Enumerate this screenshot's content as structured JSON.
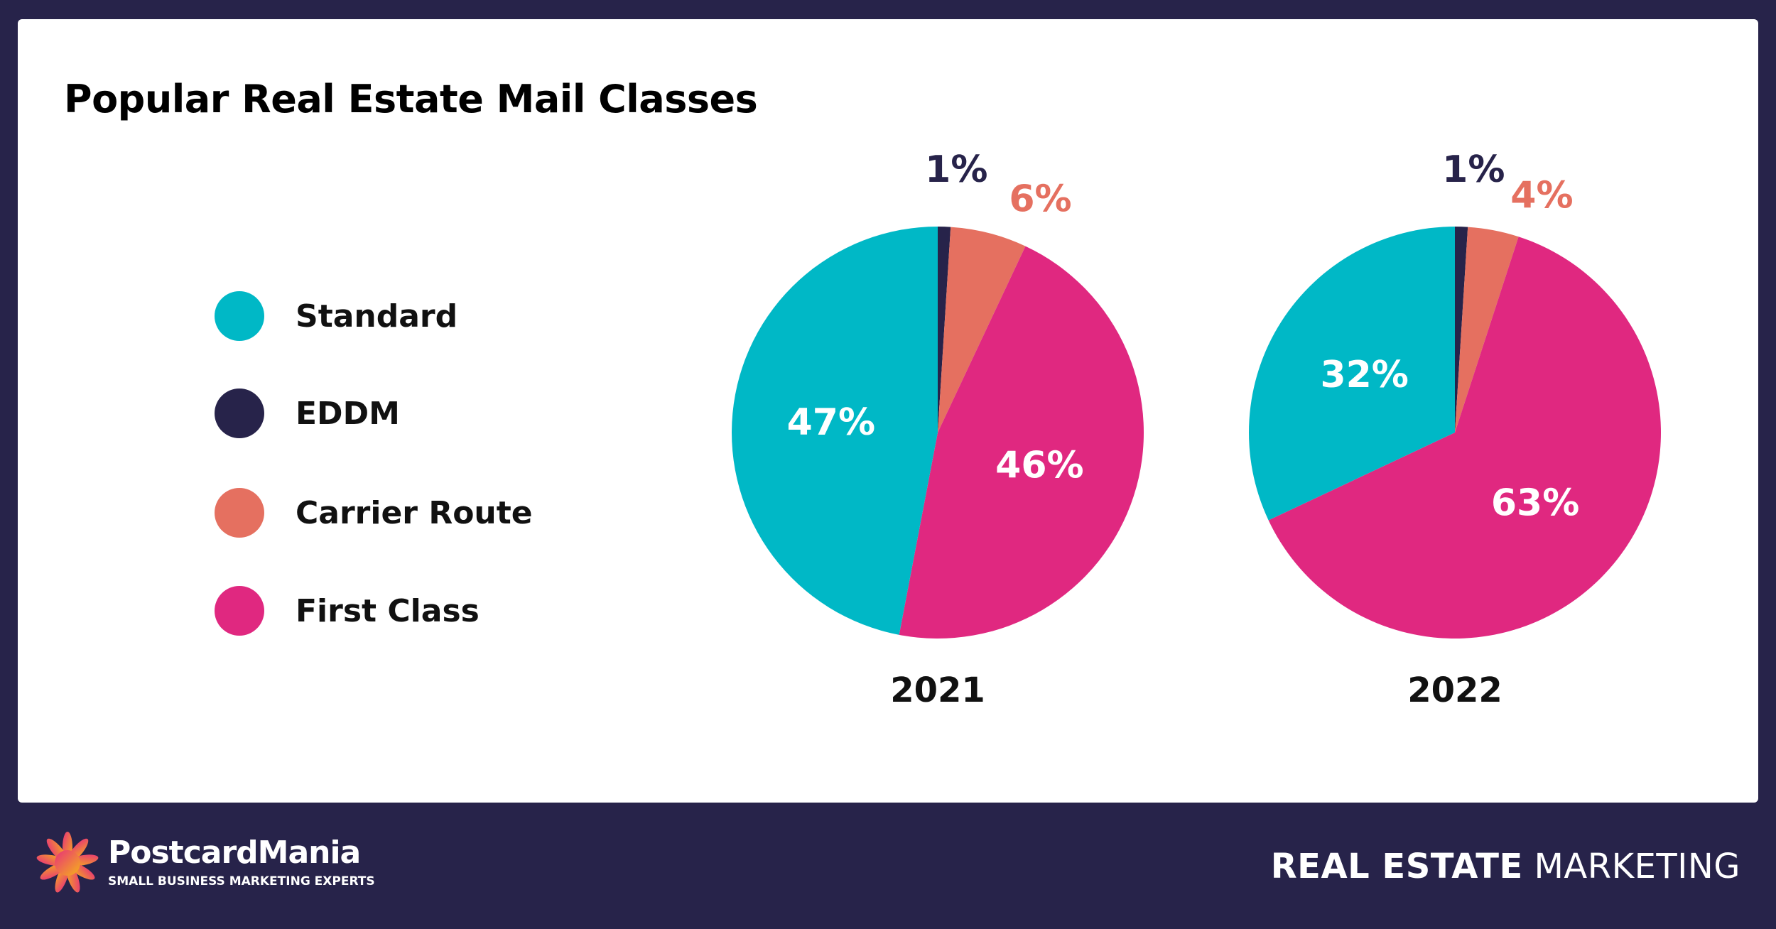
{
  "title": "Popular Real Estate Mail Classes",
  "legend": [
    {
      "label": "Standard",
      "color": "#00b8c6"
    },
    {
      "label": "EDDM",
      "color": "#27234a"
    },
    {
      "label": "Carrier Route",
      "color": "#e57060"
    },
    {
      "label": "First Class",
      "color": "#e02880"
    }
  ],
  "chart_data": [
    {
      "type": "pie",
      "xlabel": "2021",
      "categories": [
        "EDDM",
        "Carrier Route",
        "First Class",
        "Standard"
      ],
      "values": [
        1,
        6,
        46,
        47
      ],
      "labels": [
        "1%",
        "6%",
        "46%",
        "47%"
      ],
      "colors": [
        "#27234a",
        "#e57060",
        "#e02880",
        "#00b8c6"
      ]
    },
    {
      "type": "pie",
      "xlabel": "2022",
      "categories": [
        "EDDM",
        "Carrier Route",
        "First Class",
        "Standard"
      ],
      "values": [
        1,
        4,
        63,
        32
      ],
      "labels": [
        "1%",
        "4%",
        "63%",
        "32%"
      ],
      "colors": [
        "#27234a",
        "#e57060",
        "#e02880",
        "#00b8c6"
      ]
    }
  ],
  "footer": {
    "brand": "PostcardMania",
    "tagline": "SMALL BUSINESS MARKETING EXPERTS",
    "tag_bold": "REAL ESTATE",
    "tag_regular": " MARKETING"
  }
}
